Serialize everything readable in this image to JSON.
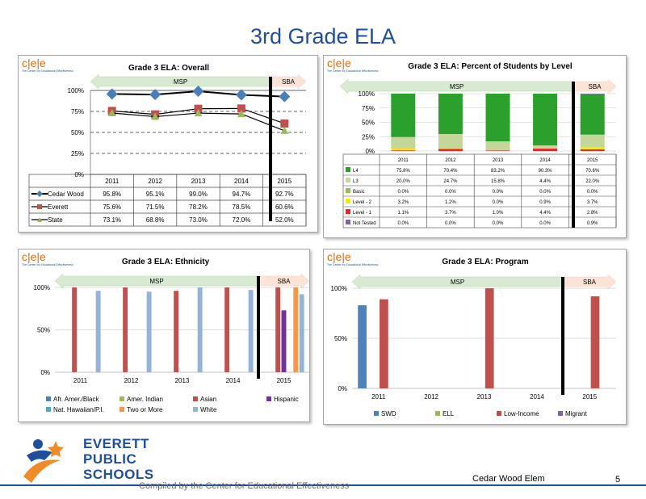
{
  "page_title": "3rd Grade ELA",
  "cee_logo": "c|e|e",
  "cee_tagline": "The Center for Educational Effectiveness",
  "footer": {
    "compiled": "Compiled by the Center for Educational Effectiveness",
    "school": "Cedar Wood Elem",
    "page_number": "5"
  },
  "district_logo": {
    "line1": "EVERETT",
    "line2": "PUBLIC",
    "line3": "SCHOOLS"
  },
  "colors": {
    "accent": "#1f4e9c",
    "msp_arrow": "#d9ead3",
    "sba_arrow": "#fbe4d5"
  },
  "chart_data": [
    {
      "type": "line",
      "title": "Grade 3 ELA: Overall",
      "msp_label": "MSP",
      "sba_label": "SBA",
      "categories": [
        "2011",
        "2012",
        "2013",
        "2014",
        "2015"
      ],
      "ylim": [
        0,
        100
      ],
      "y_ticks": [
        "0%",
        "25%",
        "50%",
        "75%",
        "100%"
      ],
      "series": [
        {
          "name": "Cedar Wood",
          "values": [
            95.8,
            95.1,
            99.0,
            94.7,
            92.7
          ],
          "labels": [
            "95.8%",
            "95.1%",
            "99.0%",
            "94.7%",
            "92.7%"
          ],
          "color": "#4a7ebb"
        },
        {
          "name": "Everett",
          "values": [
            75.6,
            71.5,
            78.2,
            78.5,
            60.6
          ],
          "labels": [
            "75.6%",
            "71.5%",
            "78.2%",
            "78.5%",
            "60.6%"
          ],
          "color": "#c0504d"
        },
        {
          "name": "State",
          "values": [
            73.1,
            68.8,
            73.0,
            72.0,
            52.0
          ],
          "labels": [
            "73.1%",
            "68.8%",
            "73.0%",
            "72.0%",
            "52.0%"
          ],
          "color": "#9bbb59"
        }
      ]
    },
    {
      "type": "bar",
      "title": "Grade 3 ELA: Percent of Students by Level",
      "msp_label": "MSP",
      "sba_label": "SBA",
      "categories": [
        "2011",
        "2012",
        "2013",
        "2014",
        "2015"
      ],
      "ylim": [
        0,
        100
      ],
      "y_ticks": [
        "0%",
        "25%",
        "50%",
        "75%",
        "100%"
      ],
      "series": [
        {
          "name": "L4",
          "values": [
            75.8,
            70.4,
            83.2,
            90.3,
            70.6
          ],
          "labels": [
            "75.8%",
            "70.4%",
            "83.2%",
            "90.3%",
            "70.6%"
          ],
          "color": "#2ca02c"
        },
        {
          "name": "L3",
          "values": [
            20.0,
            24.7,
            15.8,
            4.4,
            22.0
          ],
          "labels": [
            "20.0%",
            "24.7%",
            "15.8%",
            "4.4%",
            "22.0%"
          ],
          "color": "#c4d79b"
        },
        {
          "name": "Basic",
          "values": [
            0.0,
            0.0,
            0.0,
            0.0,
            0.0
          ],
          "labels": [
            "0.0%",
            "0.0%",
            "0.0%",
            "0.0%",
            "0.0%"
          ],
          "color": "#9bbb59"
        },
        {
          "name": "Level - 2",
          "values": [
            3.2,
            1.2,
            0.0,
            0.9,
            3.7
          ],
          "labels": [
            "3.2%",
            "1.2%",
            "0.0%",
            "0.9%",
            "3.7%"
          ],
          "color": "#f5e90a"
        },
        {
          "name": "Level - 1",
          "values": [
            1.1,
            3.7,
            1.0,
            4.4,
            2.8
          ],
          "labels": [
            "1.1%",
            "3.7%",
            "1.0%",
            "4.4%",
            "2.8%"
          ],
          "color": "#e8262b"
        },
        {
          "name": "Not Tested",
          "values": [
            0.0,
            0.0,
            0.0,
            0.0,
            0.9
          ],
          "labels": [
            "0.0%",
            "0.0%",
            "0.0%",
            "0.0%",
            "0.9%"
          ],
          "color": "#8064a2"
        }
      ]
    },
    {
      "type": "bar",
      "title": "Grade 3 ELA: Ethnicity",
      "msp_label": "MSP",
      "sba_label": "SBA",
      "categories": [
        "2011",
        "2012",
        "2013",
        "2014",
        "2015"
      ],
      "ylim": [
        0,
        100
      ],
      "y_ticks": [
        "0%",
        "50%",
        "100%"
      ],
      "series": [
        {
          "name": "Afr. Amer./Black",
          "values": [
            null,
            null,
            null,
            null,
            null
          ],
          "color": "#4f81bd"
        },
        {
          "name": "Amer. Indian",
          "values": [
            null,
            null,
            null,
            null,
            null
          ],
          "color": "#9bbb59"
        },
        {
          "name": "Asian",
          "values": [
            100,
            100,
            96,
            100,
            100
          ],
          "color": "#c0504d"
        },
        {
          "name": "Hispanic",
          "values": [
            null,
            null,
            null,
            null,
            73
          ],
          "color": "#7030a0"
        },
        {
          "name": "Nat. Hawaiian/P.I.",
          "values": [
            null,
            null,
            null,
            null,
            null
          ],
          "color": "#4bacc6"
        },
        {
          "name": "Two or More",
          "values": [
            null,
            null,
            null,
            null,
            100
          ],
          "color": "#f79646"
        },
        {
          "name": "White",
          "values": [
            96,
            95,
            100,
            97,
            92
          ],
          "color": "#95b3d7"
        }
      ]
    },
    {
      "type": "bar",
      "title": "Grade 3 ELA: Program",
      "msp_label": "MSP",
      "sba_label": "SBA",
      "categories": [
        "2011",
        "2012",
        "2013",
        "2014",
        "2015"
      ],
      "ylim": [
        0,
        100
      ],
      "y_ticks": [
        "0%",
        "50%",
        "100%"
      ],
      "series": [
        {
          "name": "SWD",
          "values": [
            83,
            null,
            null,
            null,
            null
          ],
          "color": "#4f81bd"
        },
        {
          "name": "ELL",
          "values": [
            null,
            null,
            null,
            null,
            null
          ],
          "color": "#9bbb59"
        },
        {
          "name": "Low-Income",
          "values": [
            89,
            null,
            100,
            null,
            92
          ],
          "color": "#c0504d"
        },
        {
          "name": "Migrant",
          "values": [
            null,
            null,
            null,
            null,
            null
          ],
          "color": "#8064a2"
        }
      ]
    }
  ]
}
